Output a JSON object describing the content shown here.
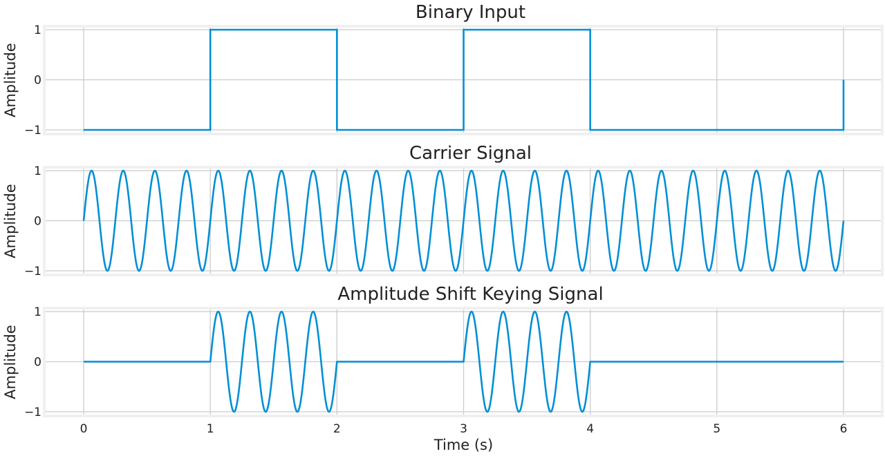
{
  "chart_data": [
    {
      "type": "line",
      "title": "Binary Input",
      "xlabel": "",
      "ylabel": "Amplitude",
      "xlim": [
        -0.3,
        6.3
      ],
      "ylim": [
        -1.1,
        1.1
      ],
      "xticks": [
        "0",
        "1",
        "2",
        "3",
        "4",
        "5",
        "6"
      ],
      "yticks": [
        "−1",
        "0",
        "1"
      ],
      "grid": true,
      "series": [
        {
          "x": [
            0,
            1,
            1,
            2,
            2,
            3,
            3,
            4,
            4,
            6,
            6
          ],
          "y": [
            -1,
            -1,
            1,
            1,
            -1,
            -1,
            1,
            1,
            -1,
            -1,
            0
          ]
        }
      ]
    },
    {
      "type": "line",
      "title": "Carrier Signal",
      "xlabel": "",
      "ylabel": "Amplitude",
      "xlim": [
        -0.3,
        6.3
      ],
      "ylim": [
        -1.1,
        1.1
      ],
      "xticks": [
        "0",
        "1",
        "2",
        "3",
        "4",
        "5",
        "6"
      ],
      "yticks": [
        "−1",
        "0",
        "1"
      ],
      "grid": true,
      "series": [
        {
          "function": "sin(2*pi*4*t)",
          "frequency_hz": 4,
          "x_range": [
            0,
            6
          ]
        }
      ]
    },
    {
      "type": "line",
      "title": "Amplitude Shift Keying Signal",
      "xlabel": "Time (s)",
      "ylabel": "Amplitude",
      "xlim": [
        -0.3,
        6.3
      ],
      "ylim": [
        -1.1,
        1.1
      ],
      "xticks": [
        "0",
        "1",
        "2",
        "3",
        "4",
        "5",
        "6"
      ],
      "yticks": [
        "−1",
        "0",
        "1"
      ],
      "grid": true,
      "series": [
        {
          "function": "sin(2*pi*4*t) where bit=1, else 0",
          "frequency_hz": 4,
          "bits": [
            0,
            1,
            0,
            1,
            0,
            0
          ],
          "x_range": [
            0,
            6
          ]
        }
      ]
    }
  ],
  "colors": {
    "line": "#008fd5",
    "grid": "#cbcbcb",
    "axes_bg": "#f0f0f0"
  }
}
